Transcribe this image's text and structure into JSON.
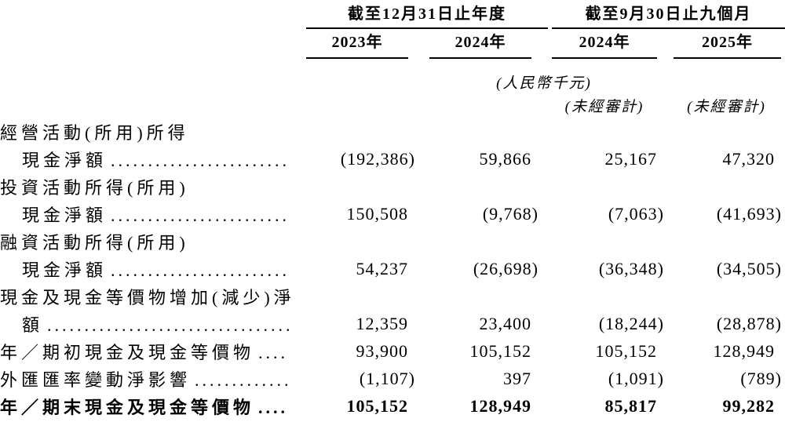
{
  "document": {
    "header": {
      "group1": {
        "title": "截至12月31日止年度",
        "cols": [
          "2023年",
          "2024年"
        ]
      },
      "group2": {
        "title": "截至9月30日止九個月",
        "cols": [
          "2024年",
          "2025年"
        ]
      },
      "currency_note": "(人民幣千元)",
      "unaudited_note": "(未經審計)"
    },
    "leader_dots": "................................................",
    "rows": [
      {
        "label": "經營活動(所用)所得",
        "indent": 0,
        "leader": false,
        "bold": false,
        "values": null
      },
      {
        "label": "現金淨額",
        "indent": 1,
        "leader": true,
        "bold": false,
        "values": [
          "(192,386)",
          "59,866",
          "25,167",
          "47,320"
        ]
      },
      {
        "label": "投資活動所得(所用)",
        "indent": 0,
        "leader": false,
        "bold": false,
        "values": null
      },
      {
        "label": "現金淨額",
        "indent": 1,
        "leader": true,
        "bold": false,
        "values": [
          "150,508",
          "(9,768)",
          "(7,063)",
          "(41,693)"
        ]
      },
      {
        "label": "融資活動所得(所用)",
        "indent": 0,
        "leader": false,
        "bold": false,
        "values": null
      },
      {
        "label": "現金淨額",
        "indent": 1,
        "leader": true,
        "bold": false,
        "values": [
          "54,237",
          "(26,698)",
          "(36,348)",
          "(34,505)"
        ]
      },
      {
        "label": "現金及現金等價物增加(減少)淨",
        "indent": 0,
        "leader": false,
        "bold": false,
        "values": null
      },
      {
        "label": "額",
        "indent": 1,
        "leader": true,
        "bold": false,
        "values": [
          "12,359",
          "23,400",
          "(18,244)",
          "(28,878)"
        ]
      },
      {
        "label": "年／期初現金及現金等價物",
        "indent": 0,
        "leader": true,
        "bold": false,
        "values": [
          "93,900",
          "105,152",
          "105,152",
          "128,949"
        ]
      },
      {
        "label": "外匯匯率變動淨影響",
        "indent": 0,
        "leader": true,
        "bold": false,
        "values": [
          "(1,107)",
          "397",
          "(1,091)",
          "(789)"
        ]
      },
      {
        "label": "年／期末現金及現金等價物",
        "indent": 0,
        "leader": true,
        "bold": true,
        "values": [
          "105,152",
          "128,949",
          "85,817",
          "99,282"
        ]
      }
    ]
  }
}
